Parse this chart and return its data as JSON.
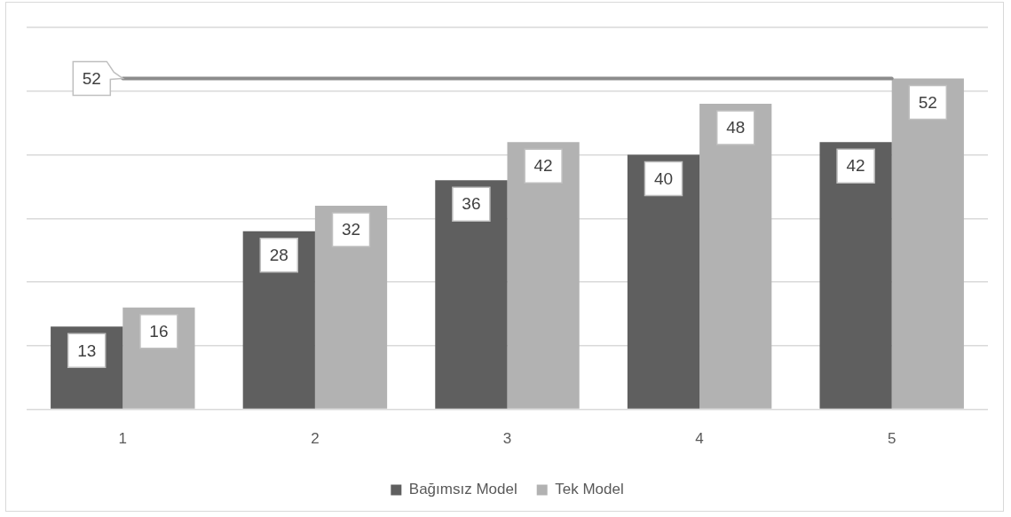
{
  "chart_data": {
    "type": "bar",
    "categories": [
      "1",
      "2",
      "3",
      "4",
      "5"
    ],
    "series": [
      {
        "name": "Bağımsız Model",
        "color": "#5f5f5f",
        "values": [
          13,
          28,
          36,
          40,
          42
        ],
        "value_labels": [
          "13",
          "28",
          "36",
          "40",
          "42"
        ]
      },
      {
        "name": "Tek Model",
        "color": "#b2b2b2",
        "values": [
          16,
          32,
          42,
          48,
          52
        ],
        "value_labels": [
          "16",
          "32",
          "42",
          "48",
          "52"
        ]
      },
      {
        "type": "line",
        "color": "#8c8c8c",
        "values": [
          52,
          52,
          52,
          52,
          52
        ],
        "value_labels": [
          "52",
          null,
          null,
          null,
          null
        ]
      }
    ],
    "ylim": [
      0,
      60
    ],
    "yticks": [
      {
        "value": 0,
        "label": null
      },
      {
        "value": 10,
        "label": null
      },
      {
        "value": 20,
        "label": null
      },
      {
        "value": 30,
        "label": null
      },
      {
        "value": 40,
        "label": null
      },
      {
        "value": 50,
        "label": null
      },
      {
        "value": 60,
        "label": null
      }
    ],
    "tick_labels": "x",
    "grid": "y",
    "legend": "bottom"
  }
}
